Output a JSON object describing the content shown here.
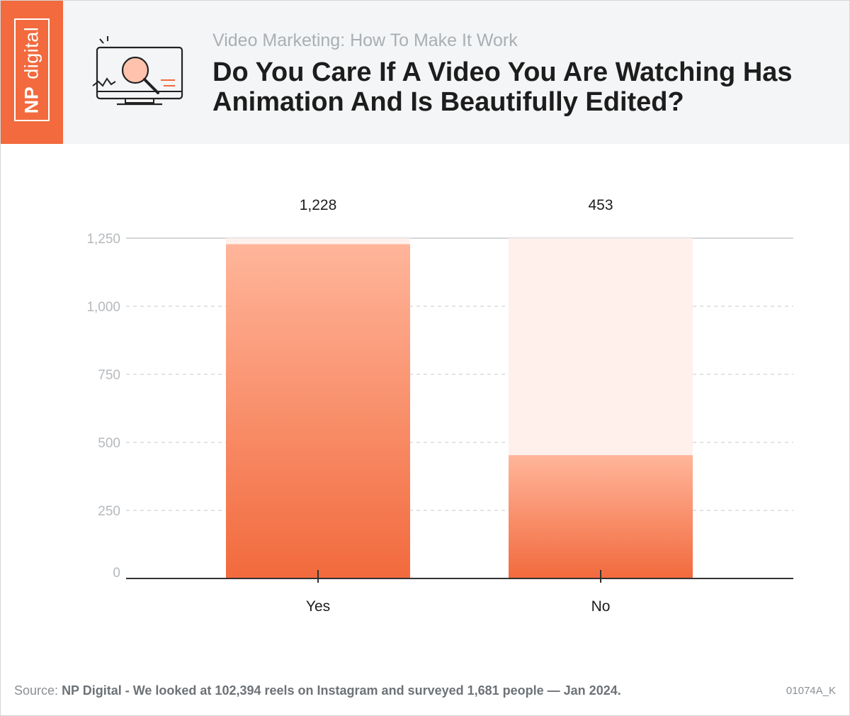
{
  "brand": {
    "np": "NP",
    "name": "digital"
  },
  "header": {
    "subtitle": "Video Marketing: How To Make It Work",
    "title": "Do You Care If A Video You Are Watching Has Animation And Is Beautifully Edited?",
    "icon": "monitor-magnifier-icon"
  },
  "chart_data": {
    "type": "bar",
    "title": "Do You Care If A Video You Are Watching Has Animation And Is Beautifully Edited?",
    "categories": [
      "Yes",
      "No"
    ],
    "values": [
      1228,
      453
    ],
    "value_labels": [
      "1,228",
      "453"
    ],
    "y_ticks": [
      0,
      250,
      500,
      750,
      1000,
      1250
    ],
    "y_tick_labels": [
      "0",
      "250",
      "500",
      "750",
      "1,000",
      "1,250"
    ],
    "ylim": [
      0,
      1250
    ],
    "xlabel": "",
    "ylabel": "",
    "grid": true,
    "colors": {
      "bar_top": "#ffb59a",
      "bar_bottom": "#f26a3d",
      "bar_track": "#fff0ec",
      "accent": "#f26a3d"
    }
  },
  "footer": {
    "source_label": "Source:",
    "source_text": "NP Digital - We looked at 102,394 reels on Instagram and surveyed 1,681 people — Jan 2024.",
    "code": "01074A_K"
  }
}
